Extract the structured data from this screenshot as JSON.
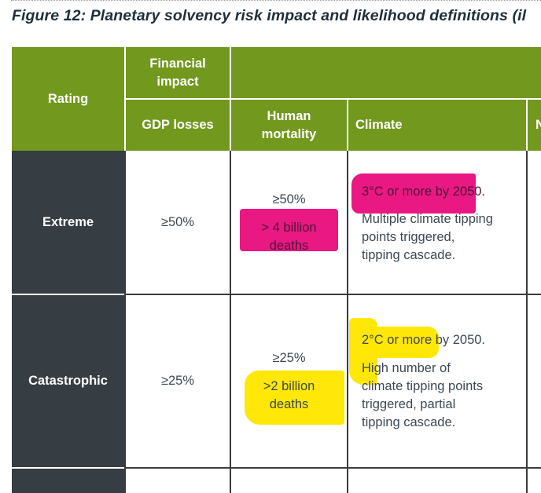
{
  "figure_title": "Figure 12: Planetary solvency risk impact and likelihood definitions (il",
  "header": {
    "rating": "Rating",
    "financial_impact": "Financial impact",
    "gdp_losses": "GDP losses",
    "human_mortality": "Human mortality",
    "climate": "Climate",
    "cut_col": "N"
  },
  "rows": [
    {
      "rating": "Extreme",
      "gdp": "≥50%",
      "mortality_pct": "≥50%",
      "mortality_line1": "> 4 billion",
      "mortality_line2": "deaths",
      "climate_temp": "3°C or more by 2050.",
      "climate_l1": "Multiple climate tipping",
      "climate_l2": "points triggered,",
      "climate_l3": "tipping cascade."
    },
    {
      "rating": "Catastrophic",
      "gdp": "≥25%",
      "mortality_pct": "≥25%",
      "mortality_line1": ">2 billion",
      "mortality_line2": "deaths",
      "climate_temp": "2°C or more by 2050.",
      "climate_l1": "High number of",
      "climate_l2": "climate tipping points",
      "climate_l3": "triggered, partial",
      "climate_l4": "tipping cascade."
    }
  ],
  "highlight_colors": {
    "pink": "#e8117f",
    "yellow": "#ffe600"
  },
  "colors": {
    "header_green": "#72981e",
    "rating_dark": "#363d43"
  }
}
